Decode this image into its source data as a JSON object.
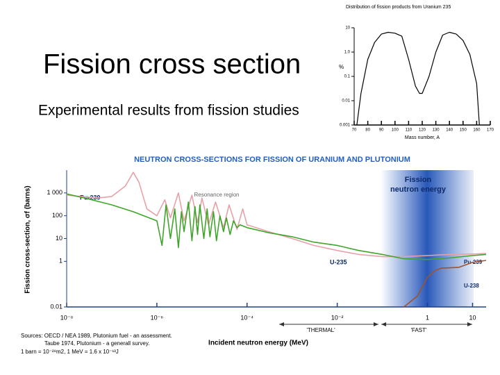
{
  "title": "Fission cross section",
  "subtitle": "Experimental results from fission studies",
  "chart_data": [
    {
      "type": "line",
      "title": "NEUTRON CROSS-SECTIONS FOR FISSION OF URANIUM AND PLUTONIUM",
      "x_label": "Incident neutron energy (MeV)",
      "y_label": "Fission cross-section, σf (barns)",
      "xscale": "log",
      "yscale": "log",
      "xlim": [
        1e-08,
        20
      ],
      "ylim": [
        0.01,
        10000
      ],
      "xticks": [
        {
          "value": 1e-08,
          "label": "10⁻⁸"
        },
        {
          "value": 1e-06,
          "label": "10⁻⁶"
        },
        {
          "value": 0.0001,
          "label": "10⁻⁴"
        },
        {
          "value": 0.01,
          "label": "10⁻²"
        },
        1,
        10
      ],
      "yticks": [
        0.01,
        1,
        10,
        100,
        {
          "value": 1000,
          "label": "1 000"
        }
      ],
      "annotations": [
        "Resonance region",
        "'THERMAL'",
        "'FAST'"
      ],
      "band_label": [
        "Fission",
        "neutron energy"
      ],
      "notes": [
        "Sources: OECD / NEA 1989, Plutonium fuel - an assessment.",
        "Taube 1974, Plutonium - a generall survey.",
        "1 barn = 10⁻²⁸m2,  1 MeV = 1.6 x 10⁻¹³J"
      ],
      "series": [
        {
          "name": "Pu-239",
          "color": "#e8a0a8",
          "x": [
            1e-08,
            5e-08,
            1e-07,
            2e-07,
            3e-07,
            4e-07,
            6e-07,
            1e-06,
            1.5e-06,
            2e-06,
            3e-06,
            4e-06,
            6e-06,
            8e-06,
            1e-05,
            1.4e-05,
            2e-05,
            3e-05,
            4e-05,
            6e-05,
            8e-05,
            0.0001,
            0.0003,
            0.001,
            0.003,
            0.01,
            0.03,
            0.1,
            0.3,
            1,
            3,
            10,
            20
          ],
          "values": [
            800,
            600,
            700,
            2000,
            8000,
            3000,
            200,
            100,
            500,
            80,
            1000,
            60,
            800,
            50,
            600,
            40,
            400,
            30,
            300,
            25,
            200,
            40,
            20,
            10,
            5,
            3,
            2,
            1.6,
            1.6,
            1.8,
            2,
            2.1,
            2.2
          ]
        },
        {
          "name": "U-235",
          "color": "#3fa52a",
          "x": [
            1e-08,
            3e-08,
            1e-07,
            3e-07,
            1e-06,
            1.3e-06,
            1.6e-06,
            2e-06,
            2.5e-06,
            3e-06,
            3.5e-06,
            4e-06,
            5e-06,
            6e-06,
            7e-06,
            8e-06,
            9e-06,
            1.1e-05,
            1.3e-05,
            1.5e-05,
            1.8e-05,
            2.1e-05,
            2.5e-05,
            3e-05,
            3.5e-05,
            4.2e-05,
            5e-05,
            6e-05,
            7e-05,
            0.0001,
            0.0003,
            0.001,
            0.003,
            0.01,
            0.03,
            0.1,
            0.3,
            1,
            3,
            10,
            20
          ],
          "values": [
            900,
            550,
            300,
            150,
            60,
            5,
            300,
            10,
            200,
            4,
            150,
            20,
            400,
            8,
            250,
            15,
            300,
            10,
            200,
            12,
            150,
            8,
            100,
            20,
            80,
            15,
            60,
            30,
            40,
            30,
            18,
            12,
            7,
            5,
            3,
            2,
            1.3,
            1.2,
            1.4,
            1.8,
            2
          ]
        },
        {
          "name": "U-238",
          "color": "#a0522d",
          "x": [
            0.3,
            0.6,
            1,
            1.5,
            2,
            5,
            10,
            20
          ],
          "values": [
            0.01,
            0.03,
            0.2,
            0.4,
            0.5,
            0.55,
            0.9,
            1.1
          ]
        }
      ]
    },
    {
      "type": "line",
      "title": "Distribution of fission products from Uranium 235",
      "x_label": "Mass number, A",
      "y_label": "%",
      "yscale": "log",
      "xlim": [
        70,
        170
      ],
      "ylim": [
        0.001,
        10
      ],
      "xticks": [
        70,
        80,
        90,
        100,
        110,
        120,
        130,
        140,
        150,
        160,
        170
      ],
      "yticks": [
        0.001,
        0.01,
        0.1,
        {
          "value": 1,
          "label": "1.0"
        },
        10
      ],
      "series": [
        {
          "color": "#000000",
          "x": [
            72,
            75,
            80,
            85,
            90,
            95,
            100,
            105,
            110,
            115,
            118,
            120,
            125,
            130,
            135,
            140,
            145,
            150,
            155,
            160,
            162
          ],
          "values": [
            0.001,
            0.02,
            0.5,
            2.5,
            5.5,
            6.5,
            6,
            4.5,
            0.5,
            0.04,
            0.02,
            0.02,
            0.1,
            1,
            5,
            6.5,
            5.5,
            3,
            0.8,
            0.05,
            0.001
          ]
        }
      ]
    }
  ]
}
